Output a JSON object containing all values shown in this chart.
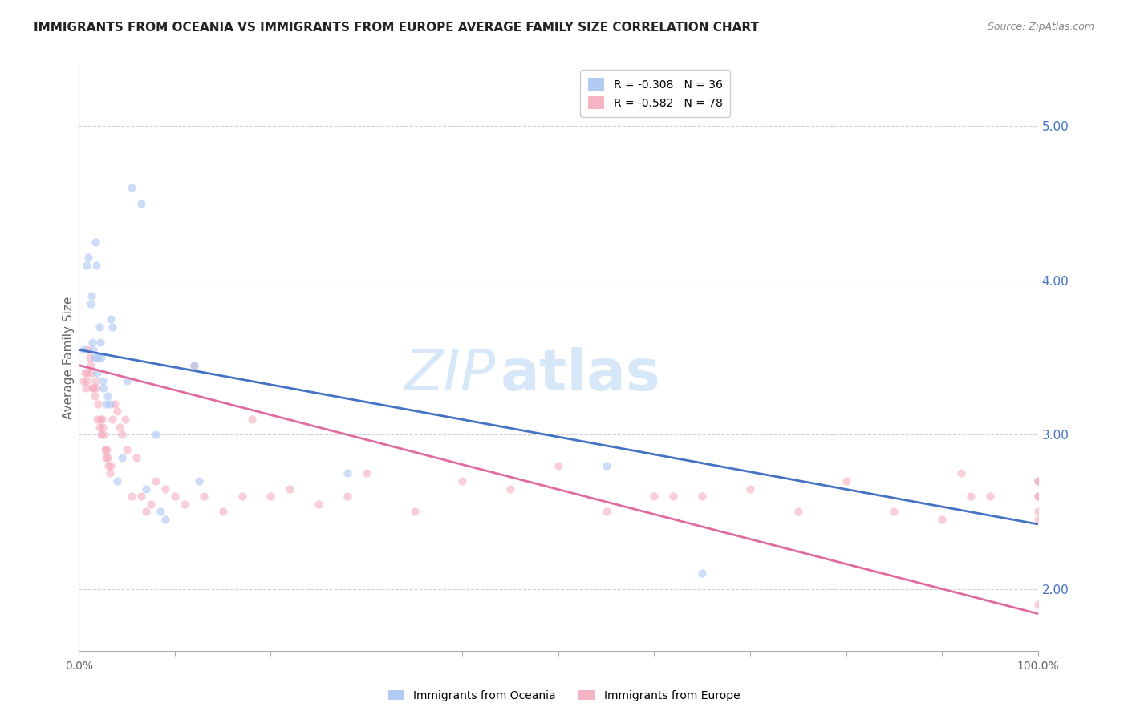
{
  "title": "IMMIGRANTS FROM OCEANIA VS IMMIGRANTS FROM EUROPE AVERAGE FAMILY SIZE CORRELATION CHART",
  "source": "Source: ZipAtlas.com",
  "ylabel": "Average Family Size",
  "xlim": [
    0,
    1
  ],
  "ylim": [
    1.6,
    5.4
  ],
  "right_yticks": [
    2.0,
    3.0,
    4.0,
    5.0
  ],
  "right_yticklabels": [
    "2.00",
    "3.00",
    "4.00",
    "5.00"
  ],
  "x_major_ticks": [
    0,
    0.1,
    0.2,
    0.3,
    0.4,
    0.5,
    0.6,
    0.7,
    0.8,
    0.9,
    1.0
  ],
  "watermark_zip": "ZIP",
  "watermark_atlas": "atlas",
  "legend_entries": [
    {
      "label": "R = -0.308   N = 36",
      "color": "#a4c2f4"
    },
    {
      "label": "R = -0.582   N = 78",
      "color": "#f4a7b9"
    }
  ],
  "oceania_color": "#a4c2f4",
  "europe_color": "#f4a7b9",
  "blue_line_color": "#4472c4",
  "pink_line_color": "#e06c9f",
  "grid_color": "#cccccc",
  "background_color": "#ffffff",
  "oceania_scatter": {
    "x": [
      0.005,
      0.008,
      0.01,
      0.012,
      0.013,
      0.014,
      0.015,
      0.016,
      0.017,
      0.018,
      0.019,
      0.02,
      0.021,
      0.022,
      0.023,
      0.025,
      0.026,
      0.028,
      0.03,
      0.032,
      0.033,
      0.035,
      0.04,
      0.045,
      0.05,
      0.055,
      0.065,
      0.07,
      0.08,
      0.085,
      0.09,
      0.12,
      0.125,
      0.28,
      0.55,
      0.65
    ],
    "y": [
      3.55,
      4.1,
      4.15,
      3.85,
      3.9,
      3.6,
      3.55,
      3.5,
      4.25,
      4.1,
      3.4,
      3.5,
      3.7,
      3.6,
      3.5,
      3.35,
      3.3,
      3.2,
      3.25,
      3.2,
      3.75,
      3.7,
      2.7,
      2.85,
      3.35,
      4.6,
      4.5,
      2.65,
      3.0,
      2.5,
      2.45,
      3.45,
      2.7,
      2.75,
      2.8,
      2.1
    ]
  },
  "europe_scatter": {
    "x": [
      0.005,
      0.006,
      0.007,
      0.008,
      0.009,
      0.01,
      0.011,
      0.012,
      0.013,
      0.014,
      0.015,
      0.016,
      0.017,
      0.018,
      0.019,
      0.02,
      0.021,
      0.022,
      0.023,
      0.024,
      0.025,
      0.026,
      0.027,
      0.028,
      0.029,
      0.03,
      0.031,
      0.032,
      0.033,
      0.035,
      0.037,
      0.04,
      0.042,
      0.045,
      0.048,
      0.05,
      0.055,
      0.06,
      0.065,
      0.07,
      0.075,
      0.08,
      0.09,
      0.1,
      0.11,
      0.12,
      0.13,
      0.15,
      0.17,
      0.18,
      0.2,
      0.22,
      0.25,
      0.28,
      0.3,
      0.35,
      0.4,
      0.45,
      0.5,
      0.55,
      0.6,
      0.62,
      0.65,
      0.7,
      0.75,
      0.8,
      0.85,
      0.9,
      0.92,
      0.93,
      0.95,
      1.0,
      1.0,
      1.0,
      1.0,
      1.0,
      1.0,
      1.0
    ],
    "y": [
      3.35,
      3.4,
      3.3,
      3.35,
      3.4,
      3.55,
      3.5,
      3.45,
      3.4,
      3.3,
      3.3,
      3.25,
      3.35,
      3.3,
      3.1,
      3.2,
      3.05,
      3.1,
      3.0,
      3.1,
      3.05,
      3.0,
      2.9,
      2.85,
      2.9,
      2.85,
      2.8,
      2.75,
      2.8,
      3.1,
      3.2,
      3.15,
      3.05,
      3.0,
      3.1,
      2.9,
      2.6,
      2.85,
      2.6,
      2.5,
      2.55,
      2.7,
      2.65,
      2.6,
      2.55,
      3.45,
      2.6,
      2.5,
      2.6,
      3.1,
      2.6,
      2.65,
      2.55,
      2.6,
      2.75,
      2.5,
      2.7,
      2.65,
      2.8,
      2.5,
      2.6,
      2.6,
      2.6,
      2.65,
      2.5,
      2.7,
      2.5,
      2.45,
      2.75,
      2.6,
      2.6,
      2.6,
      2.7,
      2.5,
      2.45,
      2.6,
      2.7,
      1.9
    ]
  },
  "blue_line": {
    "x0": 0.0,
    "y0": 3.55,
    "x1": 1.0,
    "y1": 2.42
  },
  "pink_line": {
    "x0": 0.0,
    "y0": 3.45,
    "x1": 1.0,
    "y1": 1.84
  },
  "title_fontsize": 11,
  "source_fontsize": 9,
  "ylabel_fontsize": 11,
  "legend_fontsize": 10,
  "tick_fontsize": 10,
  "watermark_zip_size": 52,
  "watermark_atlas_size": 52,
  "watermark_color": "#d6e8f7",
  "scatter_size": 55,
  "scatter_alpha": 0.55,
  "line_width": 2.0
}
